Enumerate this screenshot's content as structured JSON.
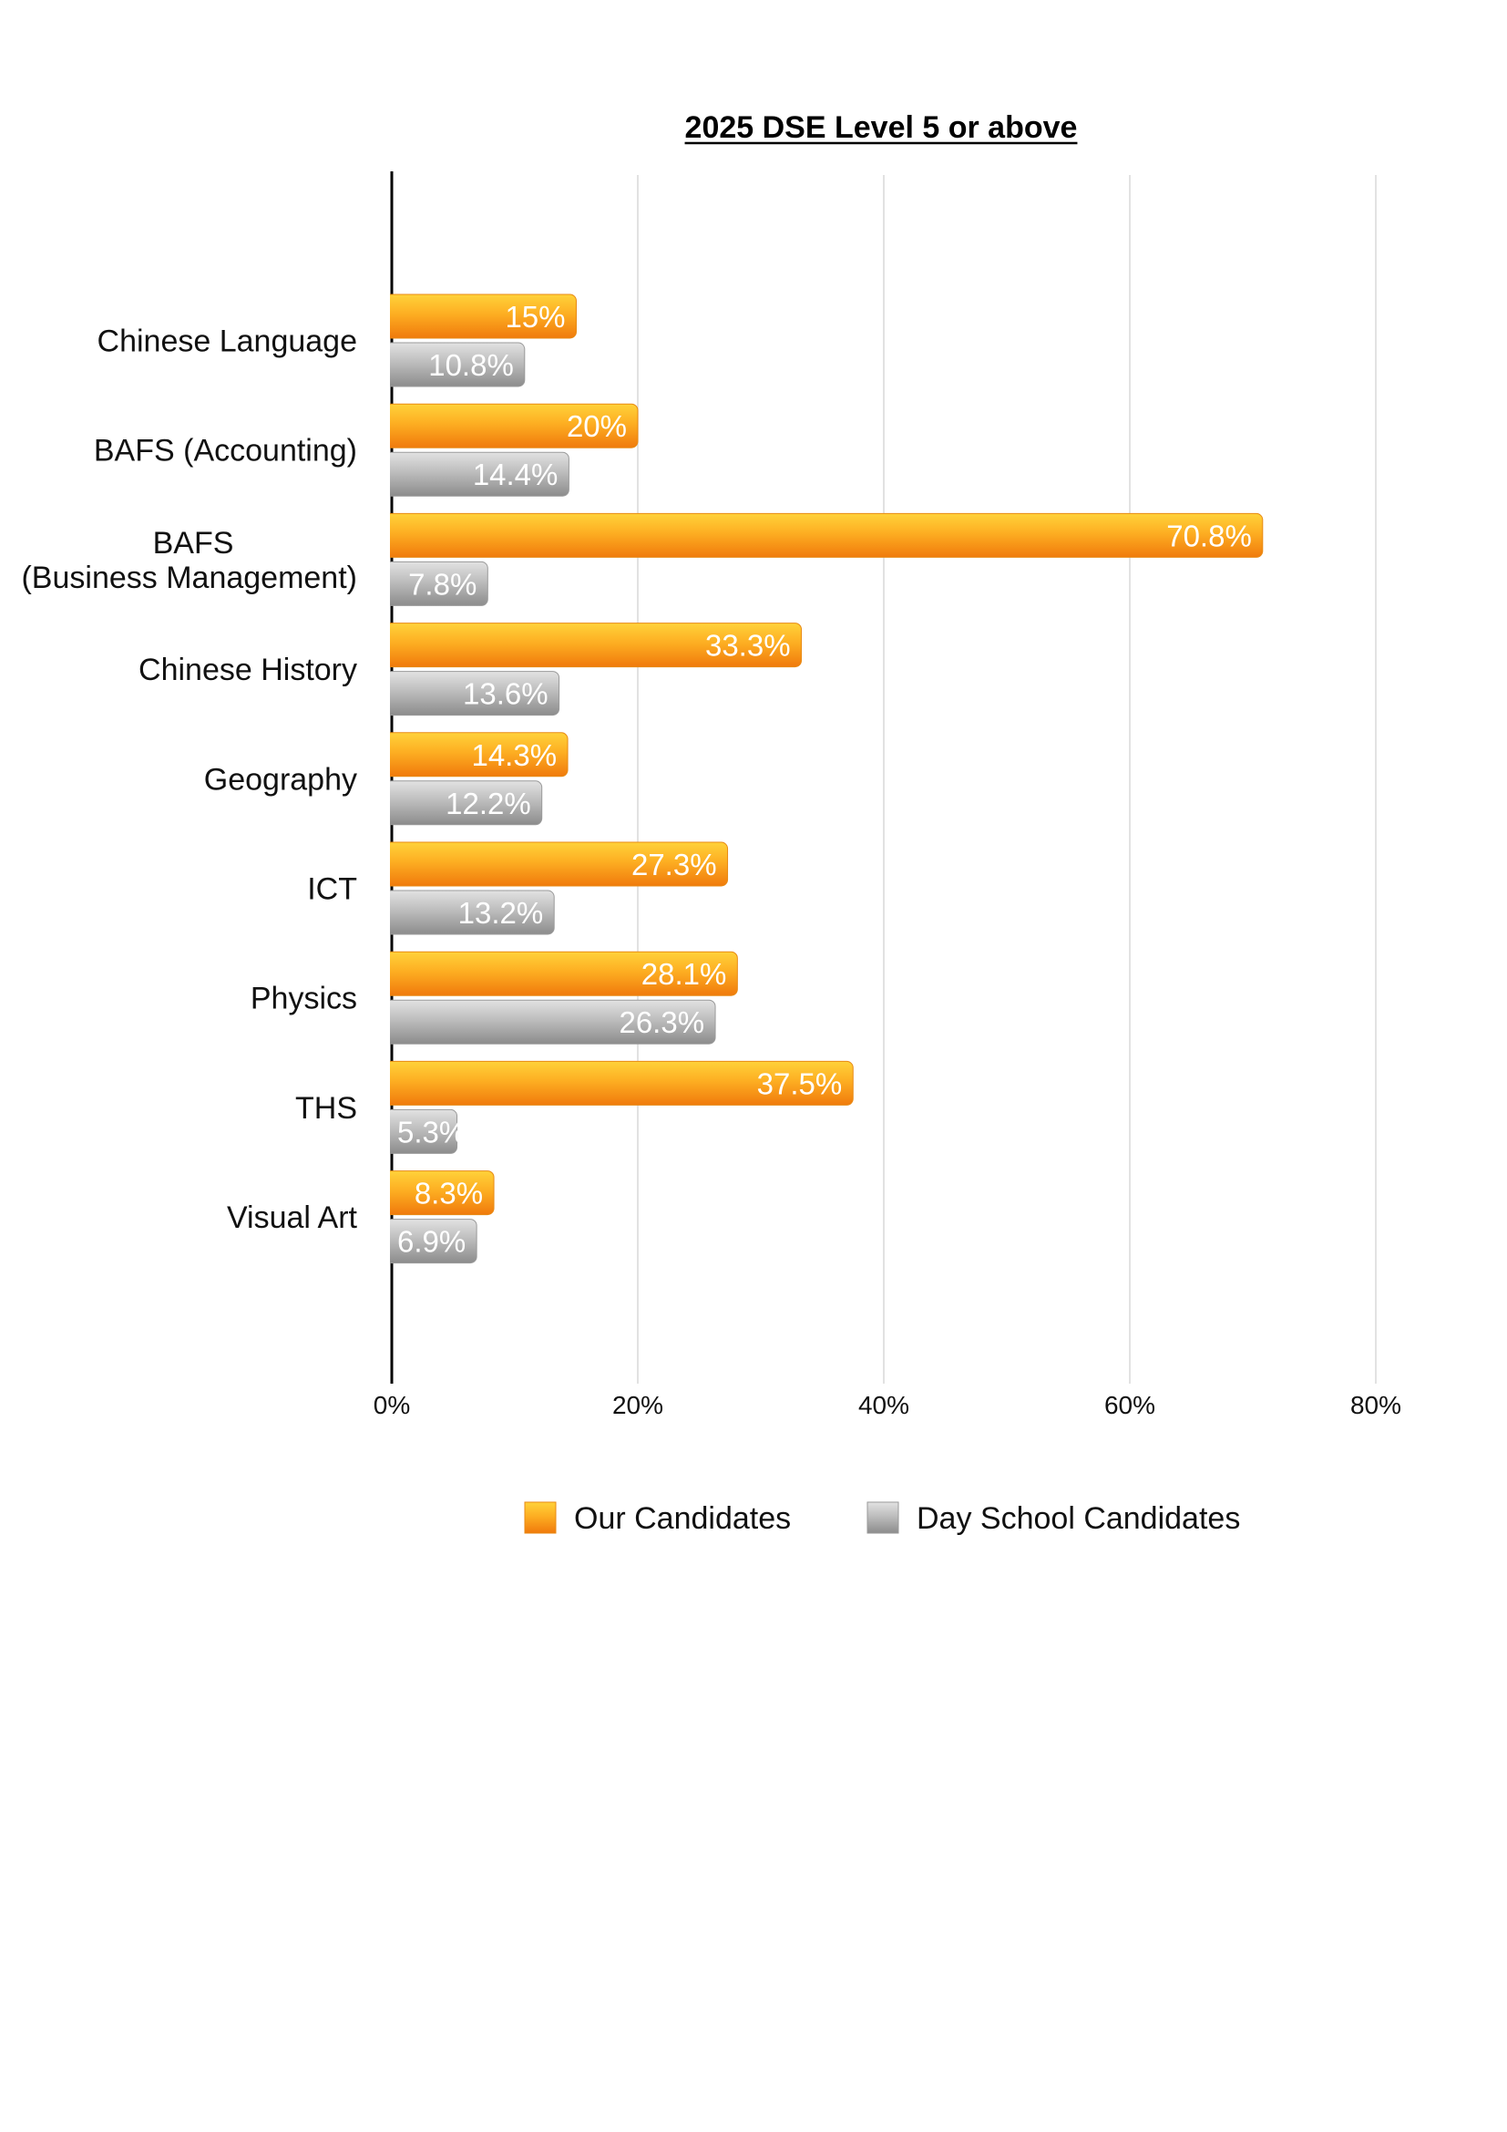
{
  "chart_data": {
    "type": "bar",
    "orientation": "horizontal",
    "title": "2025 DSE Level 5 or above",
    "xlabel": "",
    "ylabel": "",
    "xlim": [
      0,
      80
    ],
    "x_ticks": [
      "0%",
      "20%",
      "40%",
      "60%",
      "80%"
    ],
    "x_tick_values": [
      0,
      20,
      40,
      60,
      80
    ],
    "grid": true,
    "legend_position": "bottom",
    "categories": [
      [
        "Chinese Language"
      ],
      [
        "BAFS (Accounting)"
      ],
      [
        "BAFS",
        "(Business Management)"
      ],
      [
        "Chinese History"
      ],
      [
        "Geography"
      ],
      [
        "ICT"
      ],
      [
        "Physics"
      ],
      [
        "THS"
      ],
      [
        "Visual Art"
      ]
    ],
    "series": [
      {
        "name": "Our Candidates",
        "color": "#F7931E",
        "values": [
          15,
          20,
          70.8,
          33.3,
          14.3,
          27.3,
          28.1,
          37.5,
          8.3
        ],
        "labels": [
          "15%",
          "20%",
          "70.8%",
          "33.3%",
          "14.3%",
          "27.3%",
          "28.1%",
          "37.5%",
          "8.3%"
        ]
      },
      {
        "name": "Day School Candidates",
        "color": "#A6A6A6",
        "values": [
          10.8,
          14.4,
          7.8,
          13.6,
          12.2,
          13.2,
          26.3,
          5.3,
          6.9
        ],
        "labels": [
          "10.8%",
          "14.4%",
          "7.8%",
          "13.6%",
          "12.2%",
          "13.2%",
          "26.3%",
          "5.3%",
          "6.9%"
        ]
      }
    ]
  }
}
